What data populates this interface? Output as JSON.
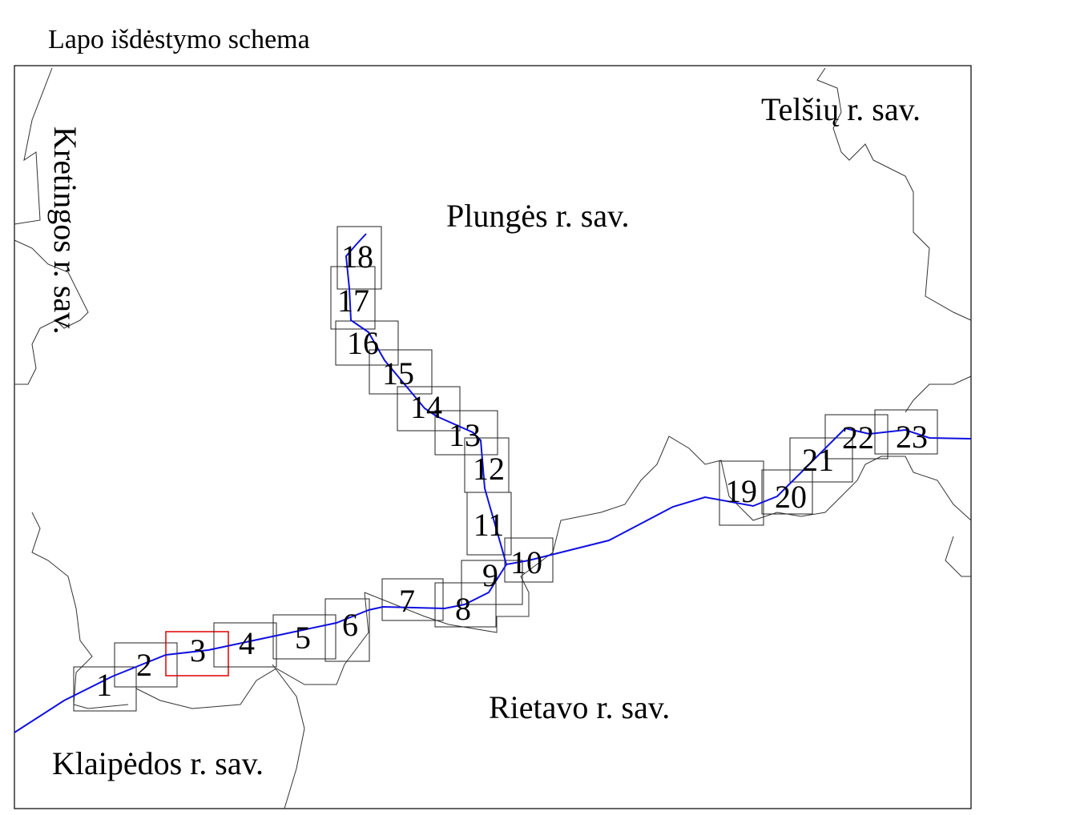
{
  "title": "Lapo išdėstymo schema",
  "regions": [
    "Telšių r. sav.",
    "Plungės r. sav.",
    "Kretingos r. sav.",
    "Rietavo r. sav.",
    "Klaipėdos r. sav."
  ],
  "sheets": [
    "1",
    "2",
    "3",
    "4",
    "5",
    "6",
    "7",
    "8",
    "9",
    "10",
    "11",
    "12",
    "13",
    "14",
    "15",
    "16",
    "17",
    "18",
    "19",
    "20",
    "21",
    "22",
    "23"
  ]
}
